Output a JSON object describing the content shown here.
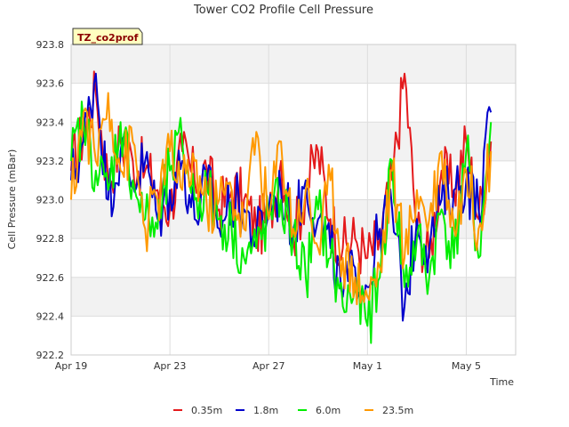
{
  "chart_data": {
    "type": "line",
    "title": "Tower CO2 Profile Cell Pressure",
    "tag": "TZ_co2prof",
    "xlabel": "Time",
    "ylabel": "Cell Pressure (mBar)",
    "ylim": [
      922.2,
      923.8
    ],
    "yticks": [
      922.2,
      922.4,
      922.6,
      922.8,
      923.0,
      923.2,
      923.4,
      923.6,
      923.8
    ],
    "ytick_labels": [
      "922.2",
      "922.4",
      "922.6",
      "922.8",
      "923.0",
      "923.2",
      "923.4",
      "923.6",
      "923.8"
    ],
    "x_start": "Apr 19",
    "x_end": "May 6.6",
    "xticks": [
      {
        "label": "Apr 19",
        "day": 0
      },
      {
        "label": "Apr 23",
        "day": 4
      },
      {
        "label": "Apr 27",
        "day": 8
      },
      {
        "label": "May 1",
        "day": 12
      },
      {
        "label": "May 5",
        "day": 16
      }
    ],
    "xlim_days": [
      0,
      18
    ],
    "grid": true,
    "legend_position": "bottom",
    "x_days": [
      0,
      0.5,
      1,
      1.5,
      2,
      2.5,
      3,
      3.5,
      4,
      4.5,
      5,
      5.5,
      6,
      6.5,
      7,
      7.5,
      8,
      8.5,
      9,
      9.5,
      10,
      10.5,
      11,
      11.5,
      12,
      12.5,
      13,
      13.5,
      14,
      14.5,
      15,
      15.5,
      16,
      16.5,
      17
    ],
    "series": [
      {
        "name": "0.35m",
        "color": "#e41a1c",
        "values": [
          923.15,
          923.35,
          923.55,
          923.1,
          923.3,
          923.2,
          923.15,
          923.05,
          922.95,
          923.25,
          923.1,
          923.15,
          922.95,
          923.05,
          923.0,
          922.85,
          922.9,
          923.2,
          922.8,
          923.05,
          923.25,
          922.9,
          922.75,
          922.8,
          922.7,
          922.8,
          923.1,
          923.65,
          922.85,
          922.7,
          923.15,
          923.05,
          923.3,
          922.9,
          923.3
        ]
      },
      {
        "name": "1.8m",
        "color": "#0000cc",
        "values": [
          923.1,
          923.3,
          923.65,
          923.0,
          923.25,
          923.1,
          923.2,
          922.9,
          923.05,
          923.2,
          922.9,
          923.1,
          922.85,
          923.0,
          922.95,
          922.8,
          922.95,
          923.05,
          922.85,
          923.1,
          922.9,
          922.75,
          922.5,
          922.65,
          922.55,
          922.85,
          922.95,
          922.45,
          922.9,
          922.75,
          923.0,
          923.05,
          923.1,
          922.95,
          923.45
        ]
      },
      {
        "name": "6.0m",
        "color": "#00ee00",
        "values": [
          923.2,
          923.4,
          923.15,
          923.05,
          923.4,
          923.1,
          922.9,
          922.85,
          923.15,
          923.3,
          923.0,
          923.05,
          922.9,
          922.85,
          922.7,
          922.75,
          922.9,
          923.0,
          922.8,
          922.6,
          922.95,
          922.7,
          922.45,
          922.55,
          922.35,
          922.6,
          923.2,
          922.55,
          922.8,
          922.6,
          922.95,
          922.7,
          923.25,
          922.7,
          923.4
        ]
      },
      {
        "name": "23.5m",
        "color": "#ff9900",
        "values": [
          923.0,
          923.45,
          923.2,
          923.55,
          923.15,
          923.3,
          922.85,
          923.0,
          923.25,
          923.05,
          923.2,
          922.95,
          923.0,
          923.05,
          922.85,
          923.35,
          922.9,
          923.3,
          922.85,
          923.05,
          922.75,
          923.1,
          922.7,
          922.6,
          922.5,
          922.65,
          923.15,
          922.7,
          923.05,
          922.9,
          923.25,
          922.85,
          923.15,
          922.85,
          923.25
        ]
      }
    ]
  }
}
